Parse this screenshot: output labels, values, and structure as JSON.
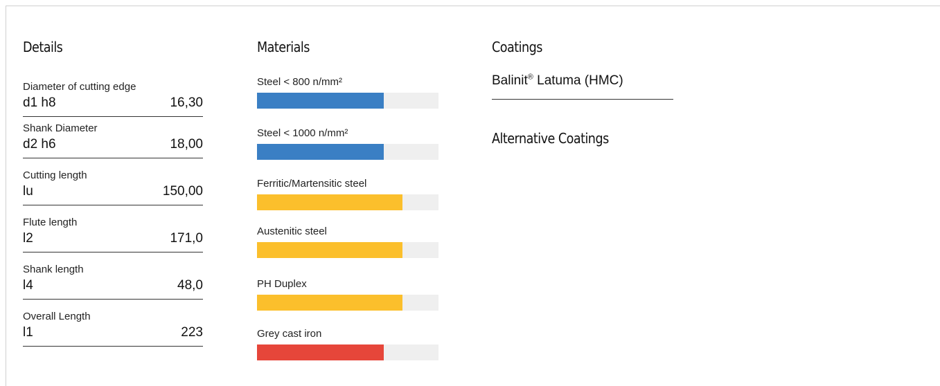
{
  "details": {
    "title": "Details",
    "rows": [
      {
        "label": "Diameter of cutting edge",
        "symbol": "d1 h8",
        "value": "16,30"
      },
      {
        "label": "Shank Diameter",
        "symbol": "d2 h6",
        "value": "18,00"
      },
      {
        "label": "Cutting length",
        "symbol": "lu",
        "value": "150,00"
      },
      {
        "label": "Flute length",
        "symbol": "l2",
        "value": "171,0"
      },
      {
        "label": "Shank length",
        "symbol": "l4",
        "value": "48,0"
      },
      {
        "label": "Overall Length",
        "symbol": "l1",
        "value": "223"
      }
    ]
  },
  "materials": {
    "title": "Materials",
    "items": [
      {
        "label": "Steel < 800 n/mm²",
        "level": 0.7,
        "color": "#3a7fc4"
      },
      {
        "label": "Steel < 1000 n/mm²",
        "level": 0.7,
        "color": "#3a7fc4"
      },
      {
        "label": "Ferritic/Martensitic steel",
        "level": 0.8,
        "color": "#fbbf2c"
      },
      {
        "label": "Austenitic steel",
        "level": 0.8,
        "color": "#fbbf2c"
      },
      {
        "label": "PH Duplex",
        "level": 0.8,
        "color": "#fbbf2c"
      },
      {
        "label": "Grey cast iron",
        "level": 0.7,
        "color": "#e6463a"
      }
    ]
  },
  "coatings": {
    "title": "Coatings",
    "main_name": "Balinit",
    "main_mark": "®",
    "main_suffix": " Latuma (HMC)",
    "alternative_title": "Alternative Coatings"
  }
}
